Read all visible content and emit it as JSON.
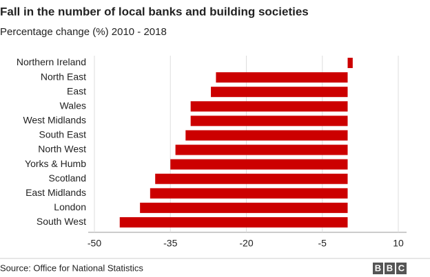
{
  "chart_data": {
    "type": "hbar",
    "title": "Fall in the number of local banks and building societies",
    "subtitle": "Percentage change (%) 2010 - 2018",
    "categories": [
      "Northern Ireland",
      "North East",
      "East",
      "Wales",
      "West Midlands",
      "South East",
      "North West",
      "Yorks & Humb",
      "Scotland",
      "East Midlands",
      "London",
      "South West"
    ],
    "values": [
      1,
      -26,
      -27,
      -31,
      -31,
      -32,
      -34,
      -35,
      -38,
      -39,
      -41,
      -45
    ],
    "color": "#cc0000",
    "xlim": [
      -50,
      10
    ],
    "xticks": [
      -50,
      -35,
      -20,
      -5,
      10
    ],
    "source": "Source: Office for National Statistics",
    "logo": [
      "B",
      "B",
      "C"
    ]
  }
}
